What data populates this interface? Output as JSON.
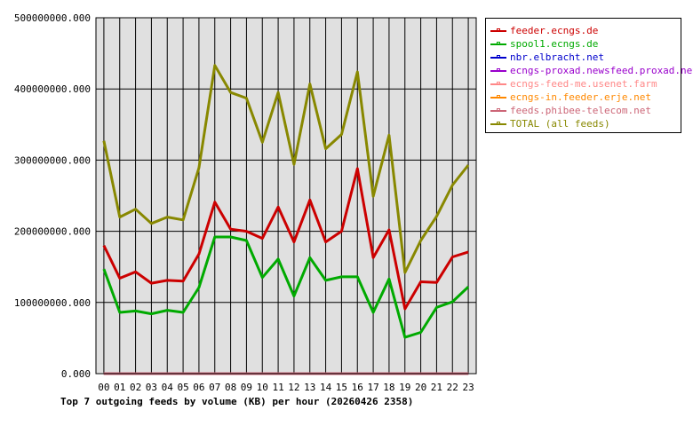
{
  "chart_data": {
    "type": "line",
    "title": "Top 7 outgoing feeds by volume (KB) per hour (20260426 2358)",
    "categories": [
      "00",
      "01",
      "02",
      "03",
      "04",
      "05",
      "06",
      "07",
      "08",
      "09",
      "10",
      "11",
      "12",
      "13",
      "14",
      "15",
      "16",
      "17",
      "18",
      "19",
      "20",
      "21",
      "22",
      "23"
    ],
    "ylim": [
      0,
      500000000
    ],
    "yticks": [
      0,
      100000000,
      200000000,
      300000000,
      400000000,
      500000000
    ],
    "ytick_labels": [
      "0.000",
      "100000000.000",
      "200000000.000",
      "300000000.000",
      "400000000.000",
      "500000000.000"
    ],
    "grid": true,
    "legend_position": "right",
    "series": [
      {
        "name": "feeder.ecngs.de",
        "color": "#cc0000",
        "values": [
          180000000,
          134000000,
          143000000,
          127000000,
          131000000,
          130000000,
          168000000,
          241000000,
          203000000,
          200000000,
          190000000,
          234000000,
          185000000,
          244000000,
          185000000,
          200000000,
          288000000,
          163000000,
          202000000,
          91000000,
          129000000,
          128000000,
          164000000,
          171000000
        ]
      },
      {
        "name": "spool1.ecngs.de",
        "color": "#00aa00",
        "values": [
          147000000,
          86000000,
          88000000,
          84000000,
          89000000,
          86000000,
          121000000,
          192000000,
          192000000,
          187000000,
          135000000,
          161000000,
          109000000,
          163000000,
          131000000,
          136000000,
          136000000,
          86000000,
          133000000,
          51000000,
          58000000,
          93000000,
          101000000,
          122000000
        ]
      },
      {
        "name": "nbr.elbracht.net",
        "color": "#0000cc",
        "values": [
          0,
          0,
          0,
          0,
          0,
          0,
          0,
          0,
          0,
          0,
          0,
          0,
          0,
          0,
          0,
          0,
          0,
          0,
          0,
          0,
          0,
          0,
          0,
          0
        ]
      },
      {
        "name": "ecngs-proxad.newsfeed.proxad.net",
        "color": "#9900cc",
        "values": [
          0,
          0,
          0,
          0,
          0,
          0,
          0,
          0,
          0,
          0,
          0,
          0,
          0,
          0,
          0,
          0,
          0,
          0,
          0,
          0,
          0,
          0,
          0,
          0
        ]
      },
      {
        "name": "ecngs-feed-me.usenet.farm",
        "color": "#ff8888",
        "values": [
          0,
          0,
          0,
          0,
          0,
          0,
          0,
          0,
          0,
          0,
          0,
          0,
          0,
          0,
          0,
          0,
          0,
          0,
          0,
          0,
          0,
          0,
          0,
          0
        ]
      },
      {
        "name": "ecngs-in.feeder.erje.net",
        "color": "#ff8800",
        "values": [
          0,
          0,
          0,
          0,
          0,
          0,
          0,
          0,
          0,
          0,
          0,
          0,
          0,
          0,
          0,
          0,
          0,
          0,
          0,
          0,
          0,
          0,
          0,
          0
        ]
      },
      {
        "name": "feeds.phibee-telecom.net",
        "color": "#cc6677",
        "values": [
          0,
          0,
          0,
          0,
          0,
          0,
          0,
          0,
          0,
          0,
          0,
          0,
          0,
          0,
          0,
          0,
          0,
          0,
          0,
          0,
          0,
          0,
          0,
          0
        ]
      },
      {
        "name": "TOTAL (all feeds)",
        "color": "#888800",
        "values": [
          327000000,
          220000000,
          231000000,
          211000000,
          220000000,
          216000000,
          289000000,
          433000000,
          395000000,
          387000000,
          325000000,
          395000000,
          294000000,
          407000000,
          316000000,
          336000000,
          424000000,
          249000000,
          335000000,
          142000000,
          187000000,
          221000000,
          265000000,
          293000000
        ]
      }
    ]
  }
}
